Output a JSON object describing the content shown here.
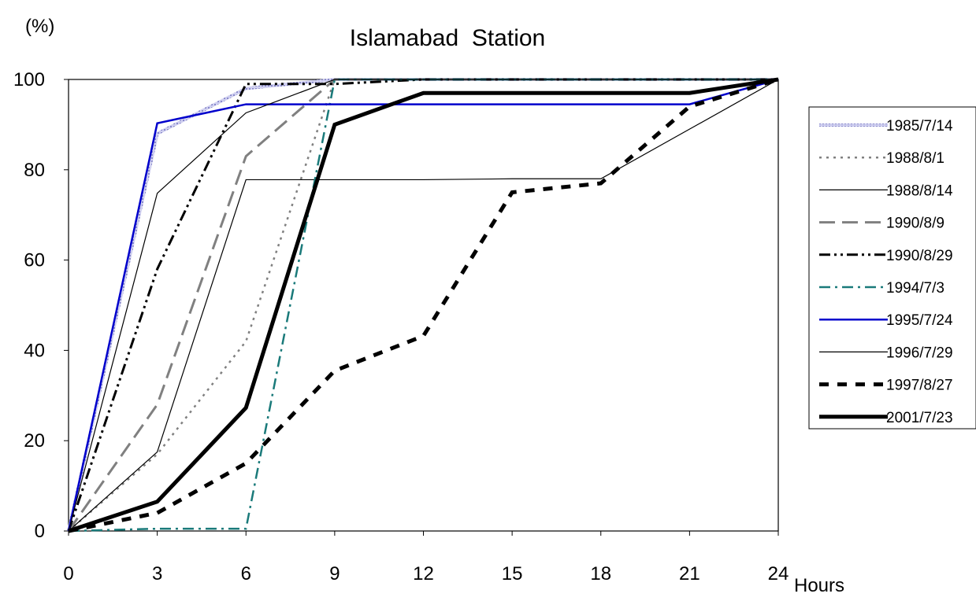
{
  "chart_data": {
    "type": "line",
    "title": "Islamabad  Station",
    "ylabel": "(%)",
    "xlabel": "Hours",
    "x": [
      0,
      3,
      6,
      9,
      12,
      15,
      18,
      21,
      24
    ],
    "xlim": [
      0,
      24
    ],
    "ylim": [
      0,
      100
    ],
    "yticks": [
      0,
      20,
      40,
      60,
      80,
      100
    ],
    "grid": false,
    "legend_position": "right",
    "series": [
      {
        "name": "1985/7/14",
        "values": [
          0,
          88,
          98,
          100,
          100,
          100,
          100,
          100,
          100
        ],
        "color": "#a8a8e0",
        "style": "hatched"
      },
      {
        "name": "1988/8/1",
        "values": [
          0,
          17,
          42,
          100,
          100,
          100,
          100,
          100,
          100
        ],
        "color": "#808080",
        "style": "dotted"
      },
      {
        "name": "1988/8/14",
        "values": [
          0,
          17.5,
          77.8,
          77.8,
          77.8,
          78,
          78,
          89,
          100
        ],
        "color": "#000000",
        "style": "thin"
      },
      {
        "name": "1990/8/9",
        "values": [
          0,
          28,
          83,
          100,
          100,
          100,
          100,
          100,
          100
        ],
        "color": "#808080",
        "style": "longdash"
      },
      {
        "name": "1990/8/29",
        "values": [
          0,
          58,
          99,
          99,
          100,
          100,
          100,
          100,
          100
        ],
        "color": "#000000",
        "style": "dashdotdot"
      },
      {
        "name": "1994/7/3",
        "values": [
          0,
          0.5,
          0.5,
          100,
          100,
          100,
          100,
          100,
          100
        ],
        "color": "#1a7a7a",
        "style": "dashdot"
      },
      {
        "name": "1995/7/24",
        "values": [
          0,
          90.3,
          94.5,
          94.5,
          94.5,
          94.5,
          94.5,
          94.5,
          100
        ],
        "color": "#0000cc",
        "style": "solid"
      },
      {
        "name": "1996/7/29",
        "values": [
          0,
          74.8,
          92.6,
          100,
          100,
          100,
          100,
          100,
          100
        ],
        "color": "#000000",
        "style": "thin"
      },
      {
        "name": "1997/8/27",
        "values": [
          0,
          4,
          15,
          35.5,
          43.2,
          75,
          77,
          94,
          100
        ],
        "color": "#000000",
        "style": "heavydash"
      },
      {
        "name": "2001/7/23",
        "values": [
          0,
          6.5,
          27.3,
          90,
          97,
          97,
          97,
          97,
          100
        ],
        "color": "#000000",
        "style": "heavy"
      }
    ]
  }
}
